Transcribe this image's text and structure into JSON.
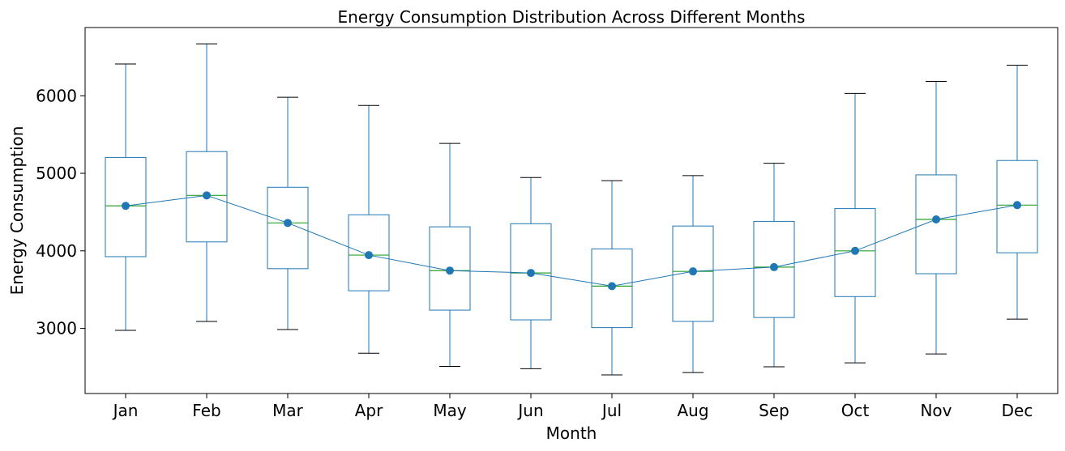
{
  "chart_data": {
    "type": "box",
    "title": "Energy Consumption Distribution Across Different Months",
    "xlabel": "Month",
    "ylabel": "Energy Consumption",
    "ylim": [
      2160,
      6880
    ],
    "yticks": [
      3000,
      4000,
      5000,
      6000
    ],
    "grid": false,
    "legend": "none",
    "categories": [
      "Jan",
      "Feb",
      "Mar",
      "Apr",
      "May",
      "Jun",
      "Jul",
      "Aug",
      "Sep",
      "Oct",
      "Nov",
      "Dec"
    ],
    "boxes": [
      {
        "whisker_low": 2975,
        "q1": 3925,
        "median": 4580,
        "q3": 5205,
        "whisker_high": 6410,
        "mean": 4580
      },
      {
        "whisker_low": 3090,
        "q1": 4115,
        "median": 4715,
        "q3": 5280,
        "whisker_high": 6670,
        "mean": 4715
      },
      {
        "whisker_low": 2985,
        "q1": 3770,
        "median": 4360,
        "q3": 4820,
        "whisker_high": 5980,
        "mean": 4360
      },
      {
        "whisker_low": 2680,
        "q1": 3485,
        "median": 3945,
        "q3": 4465,
        "whisker_high": 5875,
        "mean": 3945
      },
      {
        "whisker_low": 2510,
        "q1": 3235,
        "median": 3745,
        "q3": 4310,
        "whisker_high": 5385,
        "mean": 3745
      },
      {
        "whisker_low": 2480,
        "q1": 3110,
        "median": 3715,
        "q3": 4350,
        "whisker_high": 4945,
        "mean": 3715
      },
      {
        "whisker_low": 2400,
        "q1": 3010,
        "median": 3545,
        "q3": 4025,
        "whisker_high": 4905,
        "mean": 3545
      },
      {
        "whisker_low": 2430,
        "q1": 3090,
        "median": 3735,
        "q3": 4320,
        "whisker_high": 4970,
        "mean": 3735
      },
      {
        "whisker_low": 2505,
        "q1": 3140,
        "median": 3790,
        "q3": 4380,
        "whisker_high": 5130,
        "mean": 3790
      },
      {
        "whisker_low": 2555,
        "q1": 3410,
        "median": 4000,
        "q3": 4545,
        "whisker_high": 6030,
        "mean": 4000
      },
      {
        "whisker_low": 2670,
        "q1": 3705,
        "median": 4405,
        "q3": 4980,
        "whisker_high": 6185,
        "mean": 4405
      },
      {
        "whisker_low": 3120,
        "q1": 3975,
        "median": 4590,
        "q3": 5165,
        "whisker_high": 6395,
        "mean": 4590
      }
    ],
    "colors": {
      "box": "#1f77b4",
      "median": "#2ca02c",
      "cap": "#000000",
      "mean_marker": "#1f77b4",
      "mean_line": "#1f77b4",
      "axes": "#000000"
    }
  }
}
